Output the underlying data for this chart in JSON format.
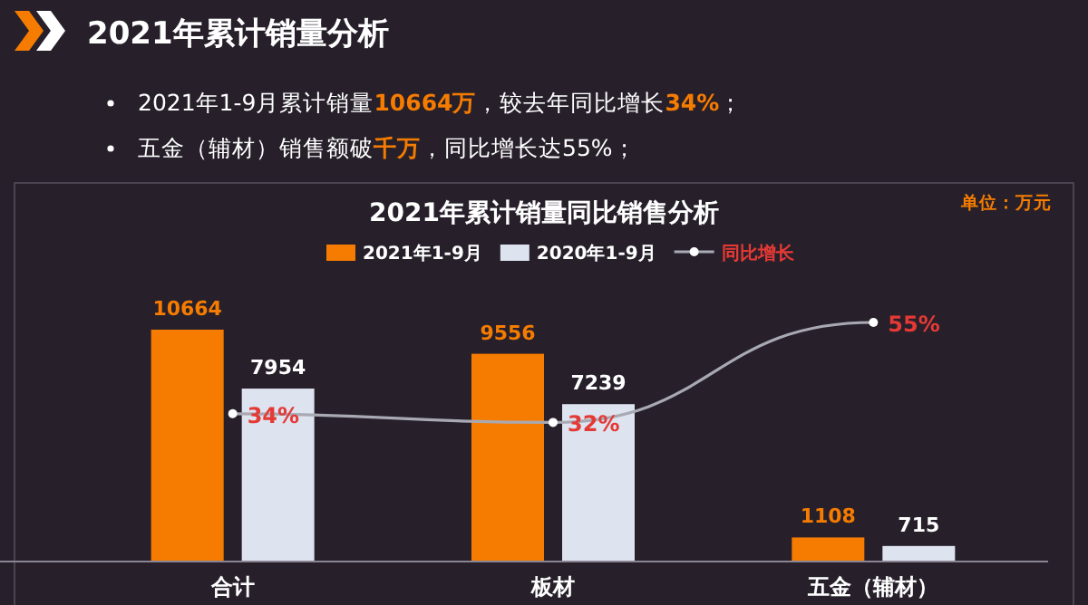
{
  "chart_data": {
    "type": "bar",
    "title": "2021年累计销量同比销售分析",
    "annotations": [
      "2021年累计销量分析",
      "2021年1-9月累计销量**10664万**，较去年同比增长**34%**；",
      "五金（辅材）销售额破**千万**，同比增长达55%；",
      "单位：万元"
    ],
    "categories": [
      "合计",
      "板材",
      "五金（辅材）"
    ],
    "series": [
      {
        "name": "2021年1-9月",
        "color": "#f57c00",
        "values": [
          10664,
          9556,
          1108
        ]
      },
      {
        "name": "2020年1-9月",
        "color": "#dde3ef",
        "values": [
          7954,
          7239,
          715
        ]
      },
      {
        "name": "同比增长",
        "type": "line",
        "axis": "y2",
        "color": "#a9a9b3",
        "values": [
          34,
          32,
          55
        ],
        "value_labels": [
          "34%",
          "32%",
          "55%"
        ]
      }
    ],
    "tick_labels": "x",
    "data_labels": true,
    "legend": "top",
    "marker": "circle"
  }
}
